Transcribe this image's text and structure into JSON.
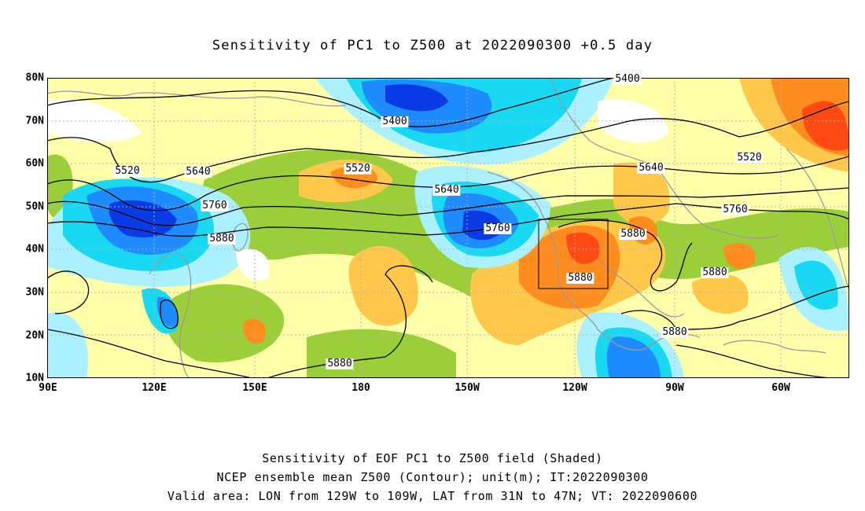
{
  "title": "Sensitivity of PC1 to Z500 at 2022090300 +0.5 day",
  "lat_labels": [
    "80N",
    "70N",
    "60N",
    "50N",
    "40N",
    "30N",
    "20N",
    "10N"
  ],
  "lon_labels": [
    "90E",
    "120E",
    "150E",
    "180",
    "150W",
    "120W",
    "90W",
    "60W"
  ],
  "contour_labels": [
    "5400",
    "5400",
    "5520",
    "5520",
    "5520",
    "5640",
    "5640",
    "5640",
    "5760",
    "5760",
    "5760",
    "5880",
    "5880",
    "5880",
    "5880",
    "5880",
    "5880"
  ],
  "footer": {
    "line1": "Sensitivity of EOF PC1 to Z500 field (Shaded)",
    "line2": "NCEP ensemble mean Z500 (Contour); unit(m); IT:2022090300",
    "line3": "Valid area: LON from 129W to 109W, LAT from 31N to 47N; VT: 2022090600"
  },
  "colors": {
    "background": "#ffffaa",
    "green": "#9bcf3a",
    "light_orange": "#ffc84a",
    "orange": "#ff8c1e",
    "red_orange": "#ff4a14",
    "light_cyan": "#aaf0ff",
    "cyan": "#18d8f2",
    "blue": "#1e8cff",
    "dark_blue": "#0a3ce6",
    "contour": "#000000",
    "coast": "#9a9a9a"
  }
}
